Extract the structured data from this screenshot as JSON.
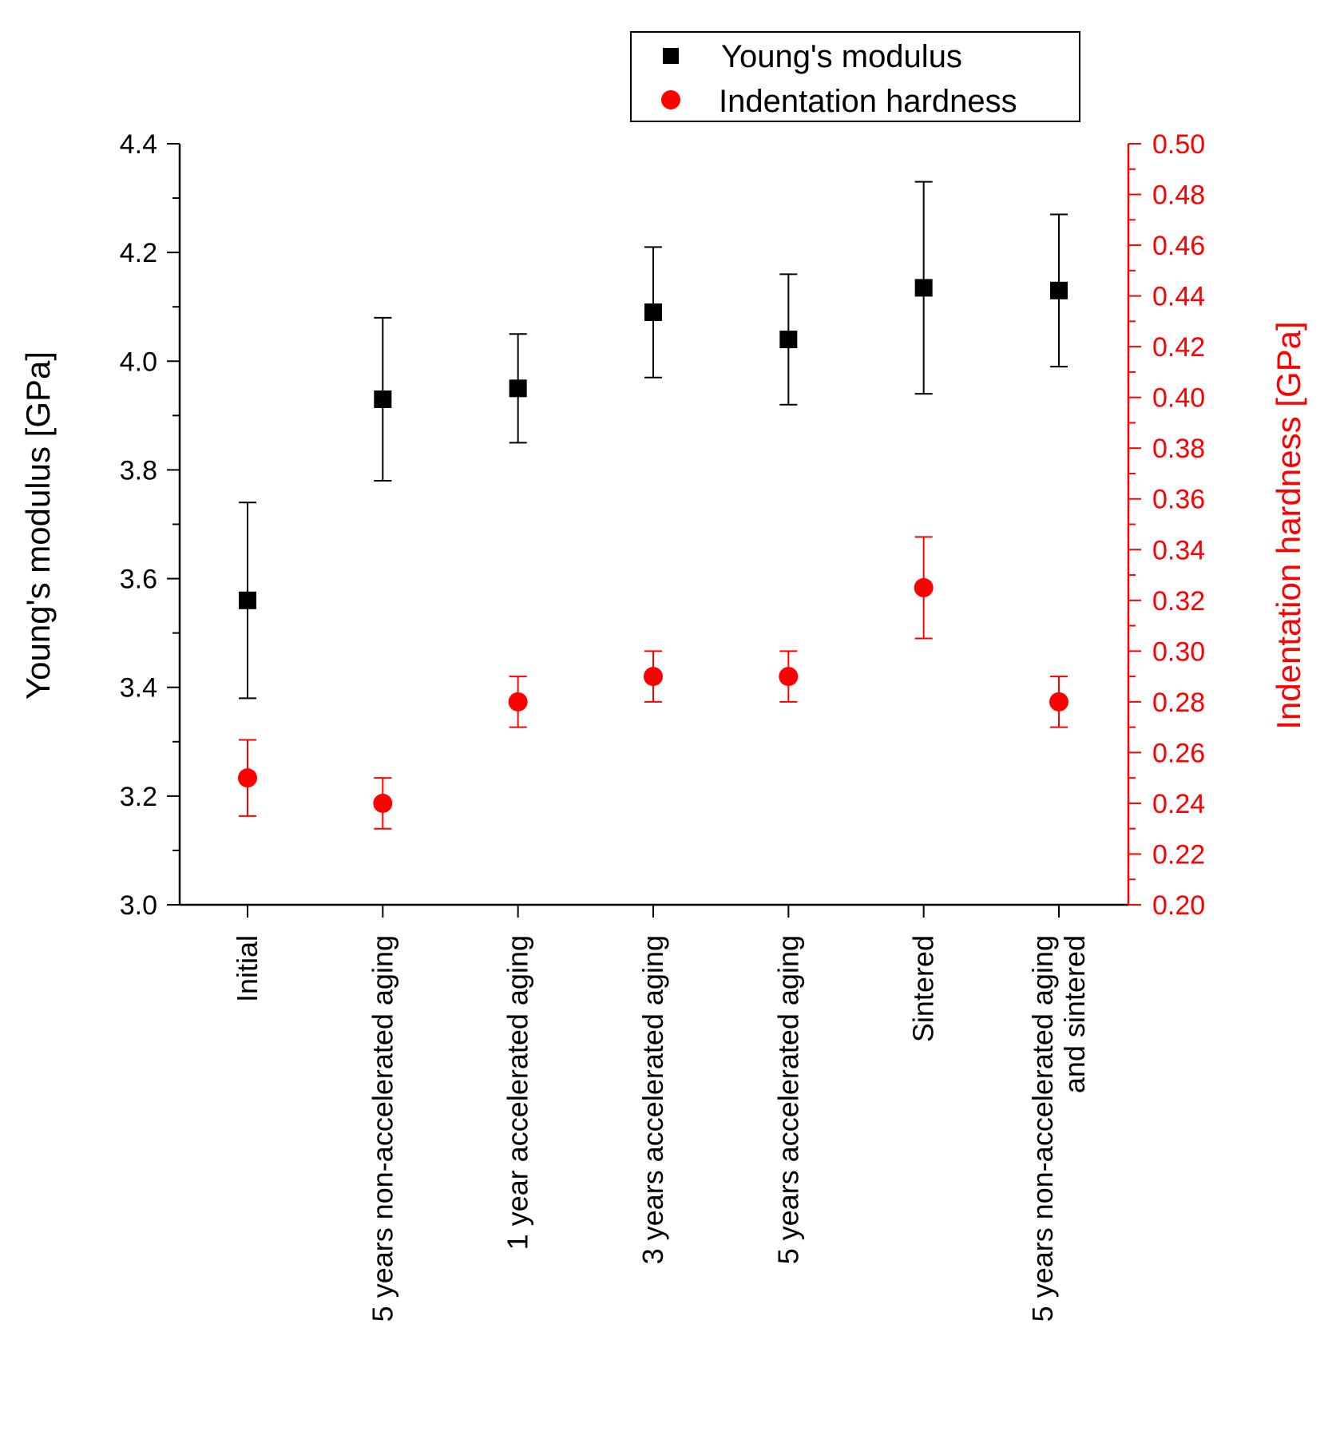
{
  "chart_data": {
    "type": "scatter",
    "categories": [
      [
        "Initial"
      ],
      [
        "5 years non-accelerated aging"
      ],
      [
        "1 year accelerated aging"
      ],
      [
        "3 years accelerated aging"
      ],
      [
        "5 years accelerated aging"
      ],
      [
        "Sintered"
      ],
      [
        "5 years non-accelerated aging",
        "and sintered"
      ]
    ],
    "series": [
      {
        "name": "Young's modulus",
        "axis": "left",
        "marker": "square",
        "color": "#000000",
        "values": [
          3.56,
          3.93,
          3.95,
          4.09,
          4.04,
          4.135,
          4.13
        ],
        "err_low": [
          3.38,
          3.78,
          3.85,
          3.97,
          3.92,
          3.94,
          3.99
        ],
        "err_high": [
          3.74,
          4.08,
          4.05,
          4.21,
          4.16,
          4.33,
          4.27
        ]
      },
      {
        "name": "Indentation hardness",
        "axis": "right",
        "marker": "circle",
        "color": "#ff0000",
        "values": [
          0.25,
          0.24,
          0.28,
          0.29,
          0.29,
          0.325,
          0.28
        ],
        "err_low": [
          0.235,
          0.23,
          0.27,
          0.28,
          0.28,
          0.305,
          0.27
        ],
        "err_high": [
          0.265,
          0.25,
          0.29,
          0.3,
          0.3,
          0.345,
          0.29
        ]
      }
    ],
    "ylabel": "Young's modulus [GPa]",
    "ylim": [
      3.0,
      4.4
    ],
    "yticks": [
      "3.0",
      "3.2",
      "3.4",
      "3.6",
      "3.8",
      "4.0",
      "4.2",
      "4.4"
    ],
    "y2label": "Indentation hardness [GPa]",
    "y2lim": [
      0.2,
      0.5
    ],
    "y2ticks": [
      "0.20",
      "0.22",
      "0.24",
      "0.26",
      "0.28",
      "0.30",
      "0.32",
      "0.34",
      "0.36",
      "0.38",
      "0.40",
      "0.42",
      "0.44",
      "0.46",
      "0.48",
      "0.50"
    ],
    "legend_position": "top-right",
    "grid": false
  }
}
